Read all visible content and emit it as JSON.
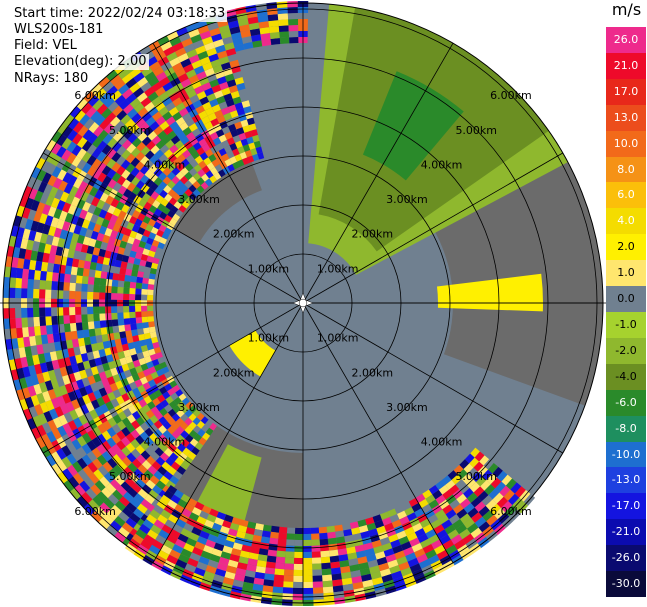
{
  "header": {
    "start_time": "Start time: 2022/02/24 03:18:33",
    "instrument": "WLS200s-181",
    "field": "Field: VEL",
    "elevation": "Elevation(deg): 2.00",
    "nrays": "NRays: 180"
  },
  "range_rings": {
    "labels": [
      "1.00km",
      "2.00km",
      "3.00km",
      "4.00km",
      "5.00km",
      "6.00km"
    ]
  },
  "colorbar": {
    "unit": "m/s",
    "ticks": [
      "26.0",
      "21.0",
      "17.0",
      "13.0",
      "10.0",
      "8.0",
      "6.0",
      "4.0",
      "2.0",
      "1.0",
      "0.0",
      "-1.0",
      "-2.0",
      "-4.0",
      "-6.0",
      "-8.0",
      "-10.0",
      "-13.0",
      "-17.0",
      "-21.0",
      "-26.0",
      "-30.0"
    ],
    "colors": [
      "#ee2a8c",
      "#ee0a2a",
      "#e8281a",
      "#ec4d1c",
      "#f26a1a",
      "#f59216",
      "#fbbf0a",
      "#f4dc00",
      "#fff000",
      "#ffe66e",
      "#708090",
      "#a6d22e",
      "#8fb82e",
      "#6b8f22",
      "#2a8a2a",
      "#1e8f5f",
      "#1e6fd0",
      "#1e40e0",
      "#1414e0",
      "#0b0bb0",
      "#0a0a70",
      "#0a0a3a"
    ]
  },
  "colors": {
    "clear_air": "#708090",
    "noise_palette": [
      "#ee2a8c",
      "#ee0a2a",
      "#f26a1a",
      "#f4dc00",
      "#1414e0",
      "#0a0a70",
      "#1e6fd0",
      "#708090",
      "#8fb82e",
      "#ffe66e",
      "#2a8a2a"
    ]
  }
}
